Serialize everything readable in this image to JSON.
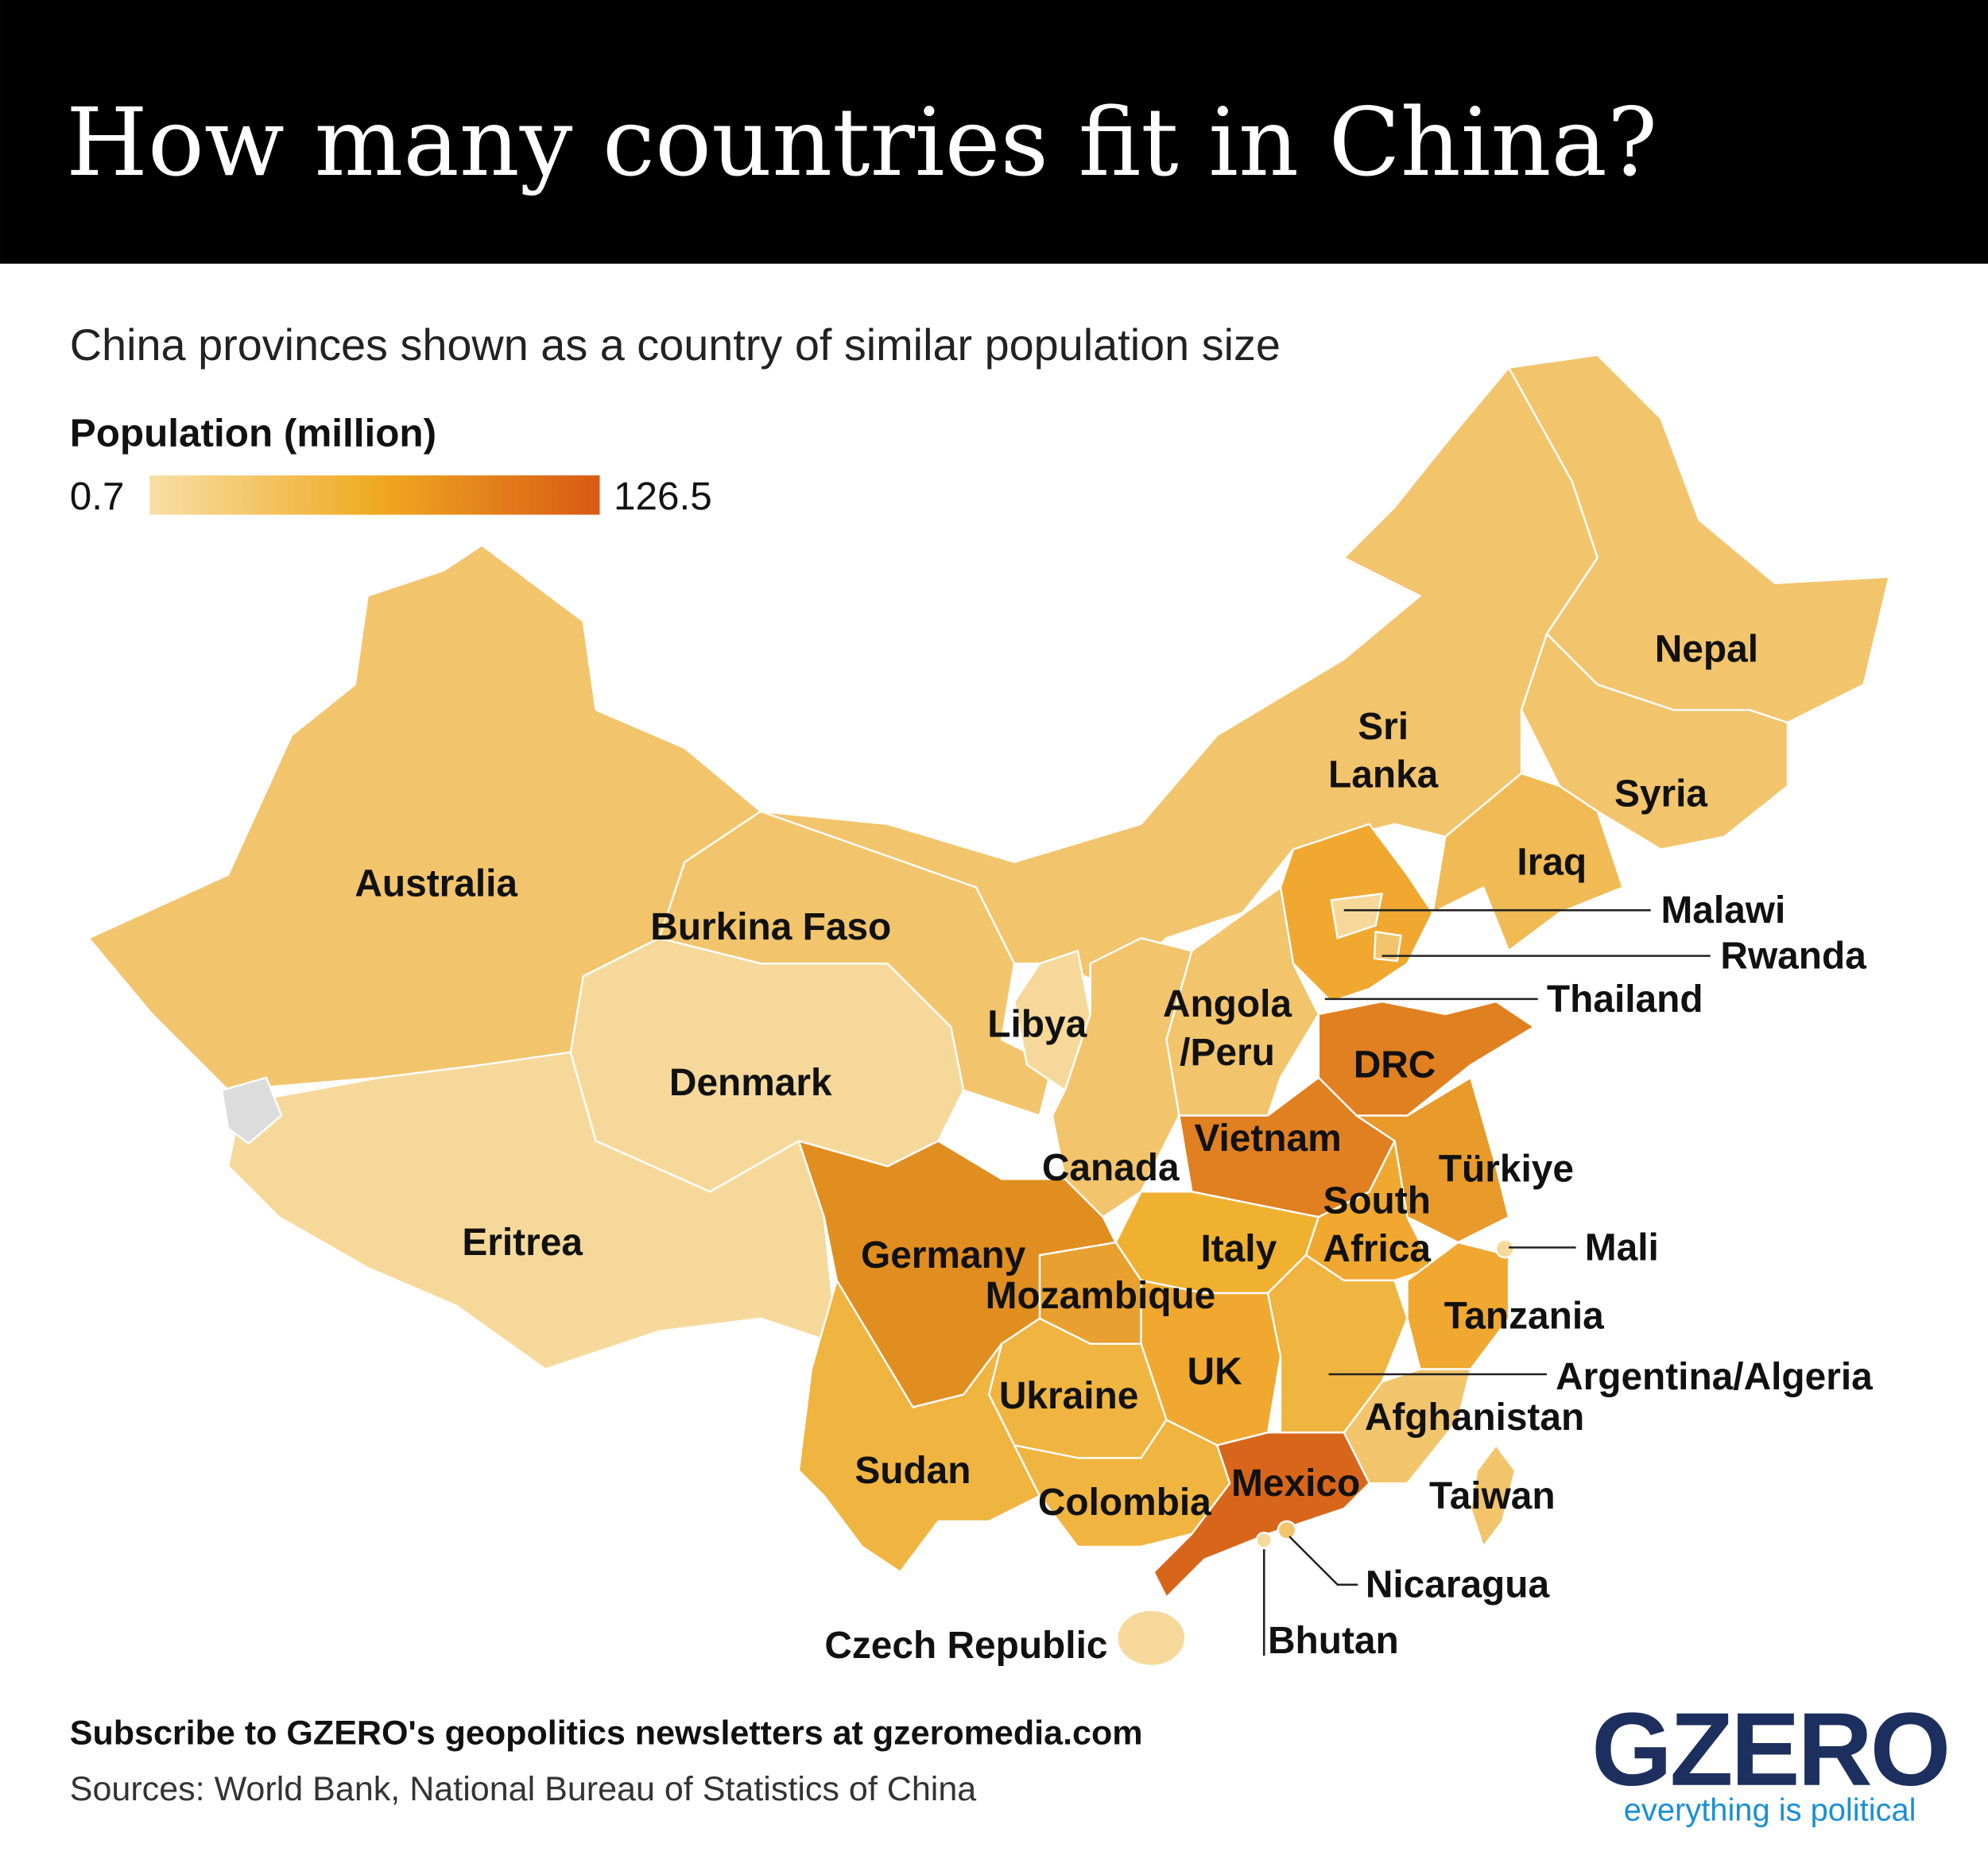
{
  "header": {
    "title": "How many countries fit in China?"
  },
  "subtitle": "China provinces shown as a country of similar population size",
  "legend": {
    "title": "Population (million)",
    "min_label": "0.7",
    "max_label": "126.5"
  },
  "labels": [
    [
      "Australia"
    ],
    [
      "Burkina Faso"
    ],
    [
      "Denmark"
    ],
    [
      "Eritrea"
    ],
    [
      "Libya"
    ],
    [
      "Angola",
      "/Peru"
    ],
    [
      "Sri",
      "Lanka"
    ],
    [
      "Nepal"
    ],
    [
      "Syria"
    ],
    [
      "Iraq"
    ],
    [
      "Malawi"
    ],
    [
      "Rwanda"
    ],
    [
      "Thailand"
    ],
    [
      "DRC"
    ],
    [
      "Vietnam"
    ],
    [
      "Türkiye"
    ],
    [
      "South",
      "Africa"
    ],
    [
      "Canada"
    ],
    [
      "Germany"
    ],
    [
      "Mozambique"
    ],
    [
      "Italy"
    ],
    [
      "Mali"
    ],
    [
      "Tanzania"
    ],
    [
      "Argentina/Algeria"
    ],
    [
      "UK"
    ],
    [
      "Ukraine"
    ],
    [
      "Afghanistan"
    ],
    [
      "Sudan"
    ],
    [
      "Mexico"
    ],
    [
      "Colombia"
    ],
    [
      "Taiwan"
    ],
    [
      "Nicaragua"
    ],
    [
      "Bhutan"
    ],
    [
      "Czech Republic"
    ]
  ],
  "footer": {
    "subscribe": "Subscribe to GZERO's geopolitics newsletters at gzeromedia.com",
    "sources": "Sources: World Bank, National Bureau of Statistics of China"
  },
  "logo": {
    "name": "GZERO",
    "tagline": "everything is political"
  }
}
